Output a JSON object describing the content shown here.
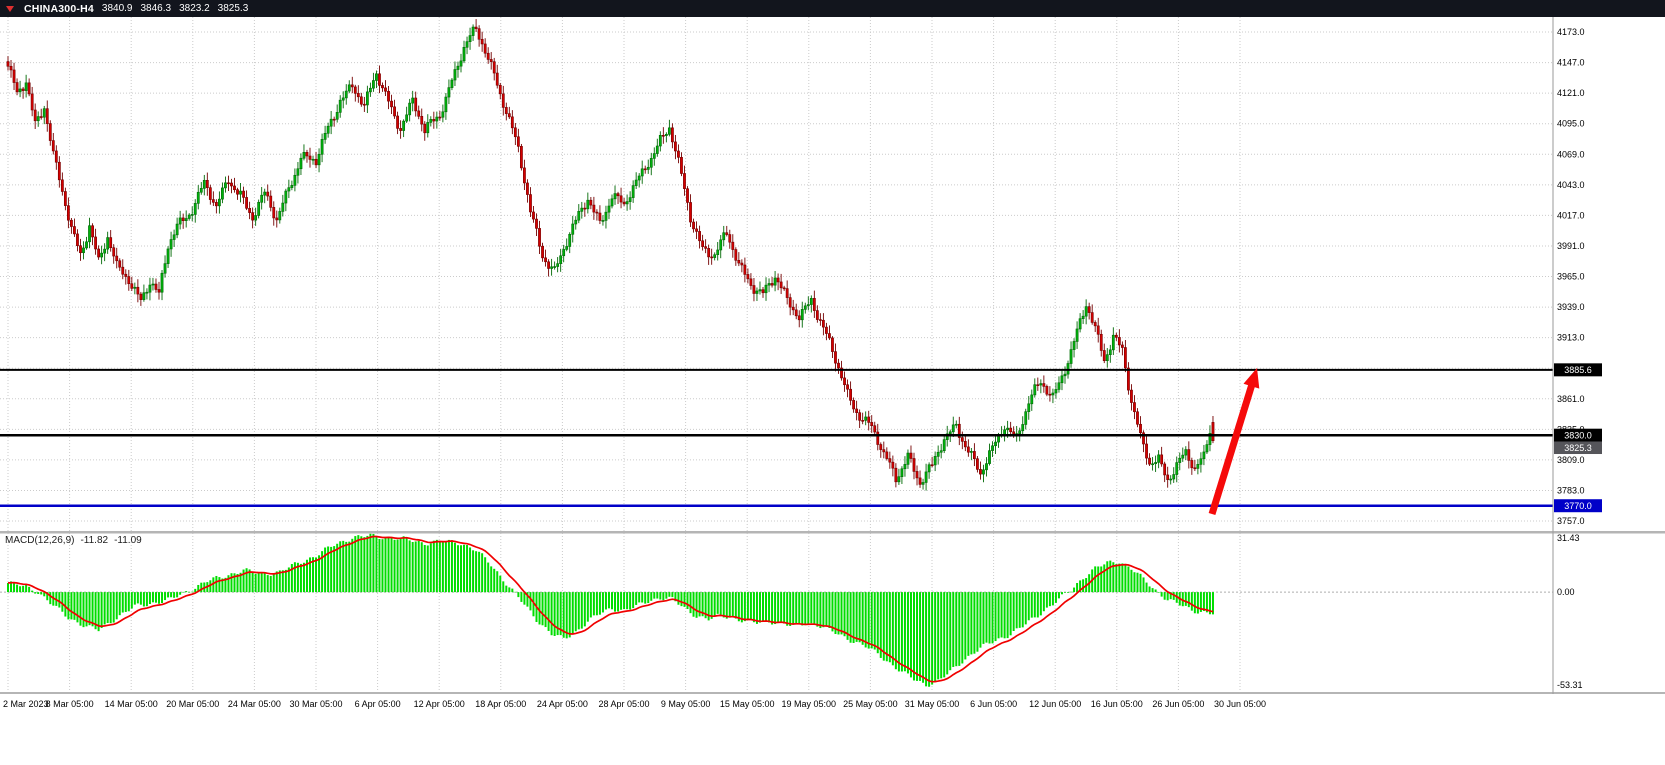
{
  "titlebar": {
    "symbol": "CHINA300-H4",
    "open": "3840.9",
    "high": "3846.3",
    "low": "3823.2",
    "close": "3825.3"
  },
  "indicator": {
    "label": "MACD(12,26,9)",
    "macd_value": "-11.82",
    "signal_value": "-11.09"
  },
  "chart_data": {
    "type": "candlestick",
    "symbol": "CHINA300-",
    "timeframe": "H4",
    "current_bar": {
      "open": 3840.9,
      "high": 3846.3,
      "low": 3823.2,
      "close": 3825.3
    },
    "price_axis": {
      "max_tick": 4173.0,
      "min_tick": 3757.0,
      "tick_step": 26.0,
      "ticks": [
        "4173.0",
        "4147.0",
        "4121.0",
        "4095.0",
        "4069.0",
        "4043.0",
        "4017.0",
        "3991.0",
        "3965.0",
        "3939.0",
        "3913.0",
        "3887.0",
        "3861.0",
        "3835.0",
        "3809.0",
        "3783.0",
        "3757.0"
      ]
    },
    "time_axis": {
      "labels": [
        "2 Mar 2023",
        "8 Mar 05:00",
        "14 Mar 05:00",
        "20 Mar 05:00",
        "24 Mar 05:00",
        "30 Mar 05:00",
        "6 Apr 05:00",
        "12 Apr 05:00",
        "18 Apr 05:00",
        "24 Apr 05:00",
        "28 Apr 05:00",
        "9 May 05:00",
        "15 May 05:00",
        "19 May 05:00",
        "25 May 05:00",
        "31 May 05:00",
        "6 Jun 05:00",
        "12 Jun 05:00",
        "16 Jun 05:00",
        "26 Jun 05:00",
        "30 Jun 05:00"
      ]
    },
    "n_bars": 400,
    "close_anchors": [
      [
        0,
        4140
      ],
      [
        3,
        4118
      ],
      [
        6,
        4133
      ],
      [
        9,
        4098
      ],
      [
        12,
        4112
      ],
      [
        15,
        4066
      ],
      [
        18,
        4034
      ],
      [
        21,
        4004
      ],
      [
        24,
        3986
      ],
      [
        27,
        4012
      ],
      [
        30,
        3978
      ],
      [
        33,
        3996
      ],
      [
        36,
        3970
      ],
      [
        40,
        3964
      ],
      [
        44,
        3948
      ],
      [
        47,
        3962
      ],
      [
        50,
        3946
      ],
      [
        53,
        3988
      ],
      [
        56,
        4008
      ],
      [
        61,
        4026
      ],
      [
        65,
        4044
      ],
      [
        69,
        4020
      ],
      [
        73,
        4048
      ],
      [
        77,
        4038
      ],
      [
        81,
        4016
      ],
      [
        85,
        4032
      ],
      [
        89,
        4012
      ],
      [
        93,
        4044
      ],
      [
        97,
        4068
      ],
      [
        102,
        4060
      ],
      [
        106,
        4090
      ],
      [
        110,
        4118
      ],
      [
        114,
        4130
      ],
      [
        118,
        4106
      ],
      [
        122,
        4136
      ],
      [
        126,
        4116
      ],
      [
        130,
        4094
      ],
      [
        134,
        4112
      ],
      [
        138,
        4086
      ],
      [
        143,
        4106
      ],
      [
        147,
        4134
      ],
      [
        151,
        4158
      ],
      [
        155,
        4172
      ],
      [
        158,
        4158
      ],
      [
        161,
        4140
      ],
      [
        165,
        4108
      ],
      [
        169,
        4070
      ],
      [
        173,
        4018
      ],
      [
        177,
        3986
      ],
      [
        181,
        3972
      ],
      [
        184,
        3988
      ],
      [
        188,
        4008
      ],
      [
        192,
        4032
      ],
      [
        196,
        4014
      ],
      [
        200,
        4034
      ],
      [
        204,
        4022
      ],
      [
        208,
        4044
      ],
      [
        212,
        4066
      ],
      [
        216,
        4082
      ],
      [
        219,
        4090
      ],
      [
        222,
        4058
      ],
      [
        226,
        4016
      ],
      [
        230,
        3992
      ],
      [
        234,
        3984
      ],
      [
        238,
        3998
      ],
      [
        242,
        3974
      ],
      [
        246,
        3962
      ],
      [
        250,
        3952
      ],
      [
        254,
        3962
      ],
      [
        258,
        3942
      ],
      [
        262,
        3934
      ],
      [
        266,
        3948
      ],
      [
        270,
        3918
      ],
      [
        274,
        3892
      ],
      [
        278,
        3866
      ],
      [
        282,
        3850
      ],
      [
        286,
        3836
      ],
      [
        290,
        3810
      ],
      [
        294,
        3794
      ],
      [
        298,
        3816
      ],
      [
        302,
        3790
      ],
      [
        306,
        3800
      ],
      [
        310,
        3826
      ],
      [
        314,
        3842
      ],
      [
        318,
        3818
      ],
      [
        322,
        3794
      ],
      [
        326,
        3816
      ],
      [
        330,
        3842
      ],
      [
        334,
        3830
      ],
      [
        338,
        3856
      ],
      [
        342,
        3872
      ],
      [
        346,
        3864
      ],
      [
        350,
        3890
      ],
      [
        354,
        3916
      ],
      [
        357,
        3938
      ],
      [
        360,
        3918
      ],
      [
        363,
        3896
      ],
      [
        366,
        3918
      ],
      [
        369,
        3904
      ],
      [
        372,
        3856
      ],
      [
        375,
        3824
      ],
      [
        378,
        3806
      ],
      [
        381,
        3812
      ],
      [
        384,
        3796
      ],
      [
        387,
        3804
      ],
      [
        390,
        3812
      ],
      [
        393,
        3798
      ],
      [
        396,
        3812
      ],
      [
        398,
        3838
      ],
      [
        399,
        3825
      ]
    ],
    "levels": [
      {
        "price": 3885.6,
        "label": "3885.6",
        "color": "#000000",
        "width": 2
      },
      {
        "price": 3830.0,
        "label": "3830.0",
        "color": "#000000",
        "width": 2.5
      },
      {
        "price": 3770.0,
        "label": "3770.0",
        "color": "#0000C8",
        "width": 2.5
      }
    ],
    "last_price": {
      "value": 3825.3,
      "label": "3825.3",
      "color": "#55555a"
    },
    "macd": {
      "params": "12,26,9",
      "macd_value": -11.82,
      "signal_value": -11.09,
      "scale_max": "31.43",
      "scale_zero": "0.00",
      "scale_min": "-53.31",
      "scale_max_num": 31.43,
      "scale_min_num": -53.31,
      "anchors": [
        [
          0,
          5
        ],
        [
          6,
          3
        ],
        [
          10,
          0
        ],
        [
          14,
          -6
        ],
        [
          20,
          -14
        ],
        [
          26,
          -19
        ],
        [
          30,
          -21
        ],
        [
          36,
          -14
        ],
        [
          42,
          -8
        ],
        [
          48,
          -6
        ],
        [
          54,
          -4
        ],
        [
          60,
          1
        ],
        [
          66,
          6
        ],
        [
          72,
          9
        ],
        [
          78,
          12
        ],
        [
          84,
          10
        ],
        [
          90,
          11
        ],
        [
          96,
          16
        ],
        [
          102,
          20
        ],
        [
          108,
          26
        ],
        [
          114,
          30
        ],
        [
          120,
          31
        ],
        [
          126,
          30
        ],
        [
          132,
          29
        ],
        [
          138,
          27
        ],
        [
          144,
          28
        ],
        [
          150,
          27
        ],
        [
          155,
          23
        ],
        [
          160,
          15
        ],
        [
          165,
          5
        ],
        [
          170,
          -5
        ],
        [
          175,
          -15
        ],
        [
          180,
          -23
        ],
        [
          184,
          -26
        ],
        [
          188,
          -22
        ],
        [
          192,
          -16
        ],
        [
          196,
          -12
        ],
        [
          200,
          -9
        ],
        [
          204,
          -10
        ],
        [
          208,
          -8
        ],
        [
          212,
          -5
        ],
        [
          216,
          -3
        ],
        [
          220,
          -4
        ],
        [
          224,
          -9
        ],
        [
          228,
          -13
        ],
        [
          232,
          -15
        ],
        [
          236,
          -13
        ],
        [
          240,
          -14
        ],
        [
          244,
          -16
        ],
        [
          248,
          -17
        ],
        [
          252,
          -16
        ],
        [
          256,
          -17
        ],
        [
          260,
          -19
        ],
        [
          264,
          -17
        ],
        [
          268,
          -18
        ],
        [
          272,
          -21
        ],
        [
          276,
          -24
        ],
        [
          280,
          -27
        ],
        [
          284,
          -30
        ],
        [
          288,
          -34
        ],
        [
          292,
          -39
        ],
        [
          296,
          -44
        ],
        [
          300,
          -48
        ],
        [
          304,
          -51
        ],
        [
          308,
          -49
        ],
        [
          312,
          -44
        ],
        [
          316,
          -38
        ],
        [
          320,
          -33
        ],
        [
          324,
          -29
        ],
        [
          328,
          -26
        ],
        [
          332,
          -23
        ],
        [
          336,
          -19
        ],
        [
          340,
          -14
        ],
        [
          344,
          -9
        ],
        [
          348,
          -4
        ],
        [
          352,
          1
        ],
        [
          356,
          8
        ],
        [
          360,
          13
        ],
        [
          364,
          16
        ],
        [
          368,
          17
        ],
        [
          372,
          13
        ],
        [
          376,
          7
        ],
        [
          380,
          1
        ],
        [
          384,
          -4
        ],
        [
          388,
          -7
        ],
        [
          392,
          -10
        ],
        [
          396,
          -11
        ],
        [
          399,
          -11.8
        ]
      ]
    },
    "arrow": {
      "from": [
        1212,
        514
      ],
      "to": [
        1257,
        368
      ],
      "color": "#F50A0A"
    },
    "colors": {
      "bull_fill": "#00B10C",
      "bull_stroke": "#006905",
      "bear_fill": "#D40000",
      "bear_stroke": "#740000",
      "macd_bar": "#00DD00",
      "signal_line": "#F00000",
      "grid": "#CBCBCB",
      "axis_text": "#000000",
      "background": "#FFFFFF",
      "titlebar_bg": "#12151D",
      "titlebar_text": "#FFFFFF",
      "splitter": "#B5B5B5"
    }
  }
}
